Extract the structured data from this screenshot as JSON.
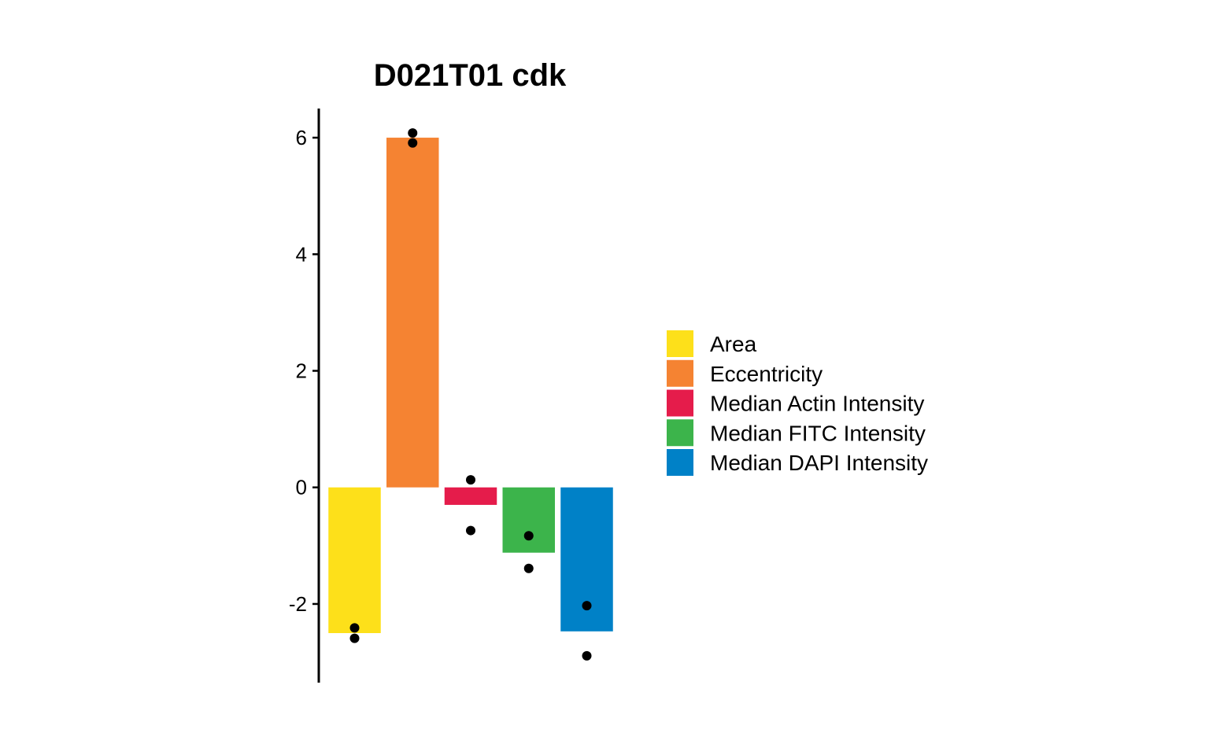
{
  "chart_data": {
    "type": "bar",
    "title": "D021T01 cdk",
    "xlabel": "",
    "ylabel": "",
    "ylim": [
      -3.35,
      6.5
    ],
    "yticks": [
      -2,
      0,
      2,
      4,
      6
    ],
    "ytick_labels": [
      "-2",
      "0",
      "2",
      "4",
      "6"
    ],
    "grid": false,
    "legend_position": "right",
    "categories": [
      "Area",
      "Eccentricity",
      "Median Actin Intensity",
      "Median FITC Intensity",
      "Median DAPI Intensity"
    ],
    "colors": [
      "#FDE01A",
      "#F58332",
      "#E51C4B",
      "#3CB44B",
      "#0081C7"
    ],
    "values": [
      -2.5,
      6.0,
      -0.3,
      -1.12,
      -2.47
    ],
    "points": [
      [
        -2.41,
        -2.59
      ],
      [
        6.08,
        5.91
      ],
      [
        0.13,
        -0.74
      ],
      [
        -0.83,
        -1.39
      ],
      [
        -2.03,
        -2.89
      ]
    ],
    "point_color": "#000000"
  }
}
